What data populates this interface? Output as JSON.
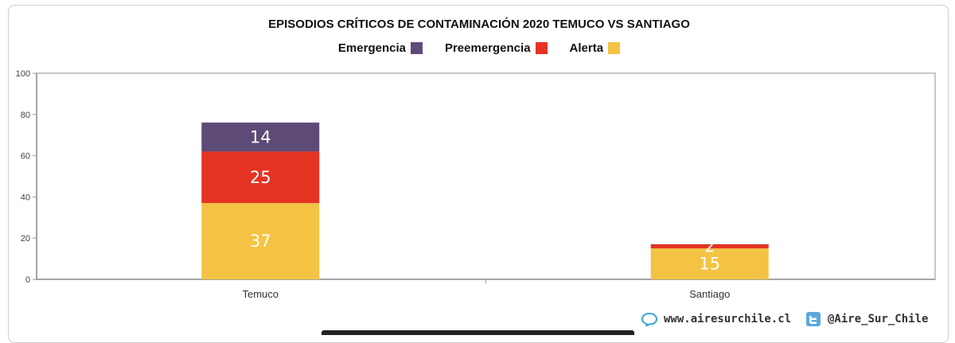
{
  "chart_data": {
    "type": "bar",
    "stacked": true,
    "title": "EPISODIOS CRÍTICOS DE CONTAMINACIÓN 2020 TEMUCO VS SANTIAGO",
    "categories": [
      "Temuco",
      "Santiago"
    ],
    "series": [
      {
        "name": "Alerta",
        "color": "#f4c343",
        "values": [
          37,
          15
        ]
      },
      {
        "name": "Preemergencia",
        "color": "#e53324",
        "values": [
          25,
          2
        ]
      },
      {
        "name": "Emergencia",
        "color": "#5e4a76",
        "values": [
          14,
          0
        ]
      }
    ],
    "legend_order": [
      "Emergencia",
      "Preemergencia",
      "Alerta"
    ],
    "ylim": [
      0,
      100
    ],
    "yticks": [
      0,
      20,
      40,
      60,
      80,
      100
    ],
    "grid": false,
    "legend_position": "top-center"
  },
  "footer": {
    "website": "www.airesurchile.cl",
    "twitter": "@Aire_Sur_Chile"
  }
}
